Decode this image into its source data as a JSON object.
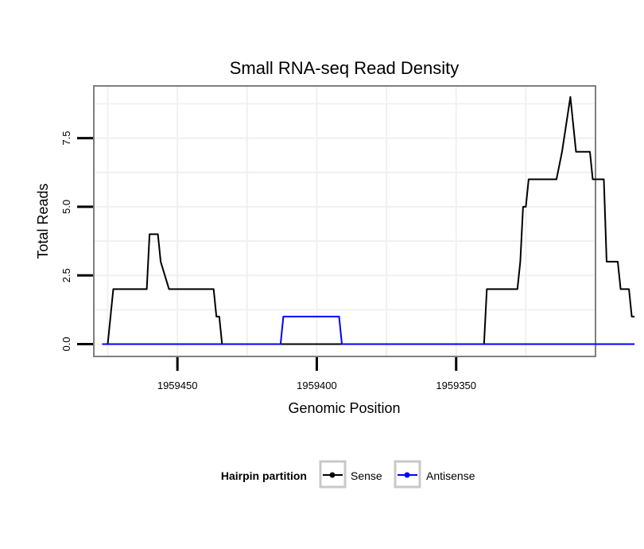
{
  "chart_data": {
    "type": "line",
    "title": "Small RNA-seq Read Density",
    "xlabel": "Genomic Position",
    "ylabel": "Total Reads",
    "x_reversed": true,
    "xlim": [
      1959480,
      1959300
    ],
    "ylim": [
      -0.45,
      9.4
    ],
    "x_ticks": [
      1959450,
      1959400,
      1959350
    ],
    "x_tick_labels": [
      "1959450",
      "1959400",
      "1959350"
    ],
    "y_ticks": [
      0,
      2.5,
      5,
      7.5
    ],
    "y_tick_labels": [
      "0.0",
      "2.5",
      "5.0",
      "7.5"
    ],
    "grid": true,
    "legend": {
      "title": "Hairpin partition",
      "position": "bottom",
      "entries": [
        {
          "label": "Sense",
          "color": "#000000"
        },
        {
          "label": "Antisense",
          "color": "#0000ff"
        }
      ]
    },
    "series": [
      {
        "name": "Sense",
        "color": "#000000",
        "x": [
          1959477,
          1959475,
          1959473,
          1959461,
          1959460,
          1959457,
          1959456,
          1959453,
          1959452,
          1959437,
          1959436,
          1959435,
          1959434,
          1959433,
          1959431,
          1959340,
          1959339,
          1959328,
          1959327,
          1959326,
          1959325,
          1959324,
          1959322,
          1959314,
          1959312,
          1959309,
          1959307,
          1959306,
          1959302,
          1959301,
          1959300,
          1959297,
          1959296,
          1959292,
          1959291,
          1959288,
          1959287,
          1959286
        ],
        "y": [
          0,
          0,
          2,
          2,
          4,
          4,
          3,
          2,
          2,
          2,
          1,
          1,
          0,
          0,
          0,
          0,
          2,
          2,
          3,
          5,
          5,
          6,
          6,
          6,
          7,
          9,
          7,
          7,
          7,
          6,
          6,
          6,
          3,
          3,
          2,
          2,
          1,
          1
        ]
      },
      {
        "name": "Antisense",
        "color": "#0000ff",
        "x": [
          1959477,
          1959413,
          1959412,
          1959392,
          1959391,
          1959286
        ],
        "y": [
          0,
          0,
          1,
          1,
          0,
          0
        ]
      }
    ]
  }
}
